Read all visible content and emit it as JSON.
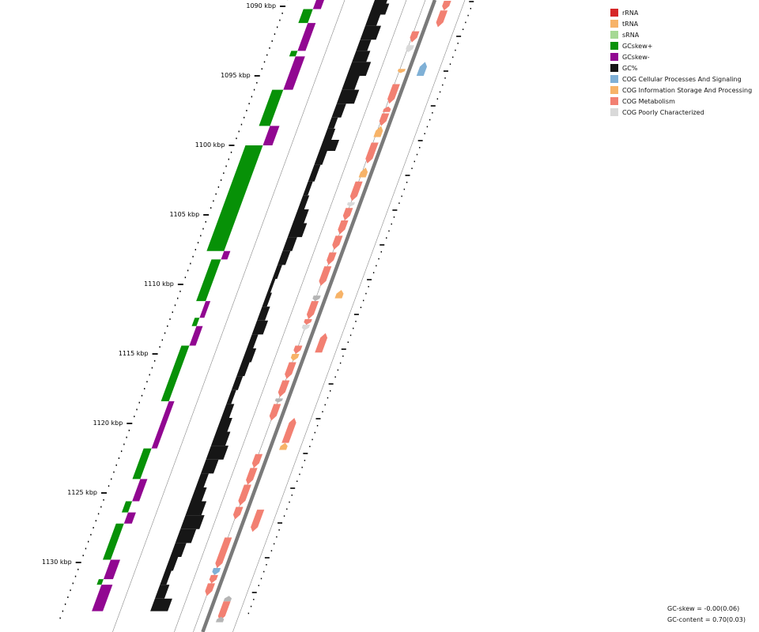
{
  "map": {
    "ticks": [
      {
        "label": "1090 kbp",
        "kbp": 1090
      },
      {
        "label": "1095 kbp",
        "kbp": 1095
      },
      {
        "label": "1100 kbp",
        "kbp": 1100
      },
      {
        "label": "1105 kbp",
        "kbp": 1105
      },
      {
        "label": "1110 kbp",
        "kbp": 1110
      },
      {
        "label": "1115 kbp",
        "kbp": 1115
      },
      {
        "label": "1120 kbp",
        "kbp": 1120
      },
      {
        "label": "1125 kbp",
        "kbp": 1125
      },
      {
        "label": "1130 kbp",
        "kbp": 1130
      }
    ],
    "colors": {
      "gc_skew_plus": "#079107",
      "gc_skew_minus": "#910791",
      "gc_content": "#161616",
      "cog_metabolism": "#f28072",
      "cog_info": "#f7b368",
      "cog_cellular": "#7fb0d6",
      "cog_poor": "#d9d9d9",
      "feature_gray": "#b5b5b5",
      "backbone": "#7a7a7a",
      "guide": "#8a8a8a"
    },
    "gc_skew_profile": [
      [
        "-",
        1089.0,
        1090.2,
        10
      ],
      [
        "+",
        1090.2,
        1091.2,
        12
      ],
      [
        "-",
        1091.2,
        1093.2,
        10
      ],
      [
        "+",
        1093.2,
        1093.6,
        8
      ],
      [
        "-",
        1093.6,
        1096.0,
        12
      ],
      [
        "+",
        1096.0,
        1098.6,
        14
      ],
      [
        "-",
        1098.6,
        1100.0,
        12
      ],
      [
        "+",
        1100.0,
        1107.6,
        22
      ],
      [
        "-",
        1107.6,
        1108.2,
        8
      ],
      [
        "+",
        1108.2,
        1111.2,
        12
      ],
      [
        "-",
        1111.2,
        1112.4,
        6
      ],
      [
        "+",
        1112.4,
        1113.0,
        6
      ],
      [
        "-",
        1113.0,
        1114.4,
        8
      ],
      [
        "+",
        1114.4,
        1118.4,
        10
      ],
      [
        "-",
        1118.4,
        1121.8,
        7
      ],
      [
        "+",
        1121.8,
        1124.0,
        10
      ],
      [
        "-",
        1124.0,
        1125.6,
        9
      ],
      [
        "+",
        1125.6,
        1126.4,
        8
      ],
      [
        "-",
        1126.4,
        1127.2,
        10
      ],
      [
        "+",
        1127.2,
        1129.8,
        10
      ],
      [
        "-",
        1129.8,
        1131.2,
        12
      ],
      [
        "+",
        1131.2,
        1131.6,
        6
      ],
      [
        "-",
        1131.6,
        1133.5,
        14
      ]
    ],
    "gc_content_profile": [
      [
        1089.0,
        16
      ],
      [
        1089.8,
        20
      ],
      [
        1090.6,
        14
      ],
      [
        1091.4,
        20
      ],
      [
        1092.4,
        14
      ],
      [
        1093.2,
        18
      ],
      [
        1094.0,
        24
      ],
      [
        1095.0,
        16
      ],
      [
        1096.0,
        22
      ],
      [
        1097.0,
        12
      ],
      [
        1098.0,
        8
      ],
      [
        1098.8,
        10
      ],
      [
        1099.6,
        20
      ],
      [
        1100.4,
        10
      ],
      [
        1101.4,
        8
      ],
      [
        1102.6,
        6
      ],
      [
        1103.6,
        8
      ],
      [
        1104.6,
        14
      ],
      [
        1105.6,
        18
      ],
      [
        1106.6,
        12
      ],
      [
        1107.6,
        10
      ],
      [
        1108.6,
        6
      ],
      [
        1109.6,
        4
      ],
      [
        1110.6,
        6
      ],
      [
        1111.6,
        10
      ],
      [
        1112.6,
        14
      ],
      [
        1113.6,
        8
      ],
      [
        1114.6,
        12
      ],
      [
        1115.6,
        10
      ],
      [
        1116.6,
        8
      ],
      [
        1117.6,
        6
      ],
      [
        1118.6,
        10
      ],
      [
        1119.6,
        14
      ],
      [
        1120.6,
        18
      ],
      [
        1121.6,
        22
      ],
      [
        1122.6,
        16
      ],
      [
        1123.6,
        10
      ],
      [
        1124.6,
        14
      ],
      [
        1125.6,
        20
      ],
      [
        1126.6,
        24
      ],
      [
        1127.6,
        20
      ],
      [
        1128.6,
        14
      ],
      [
        1129.6,
        10
      ],
      [
        1130.6,
        8
      ],
      [
        1131.6,
        12
      ],
      [
        1132.6,
        22
      ],
      [
        1133.5,
        24
      ]
    ],
    "features": [
      [
        1089.6,
        1090.3,
        "out",
        "cog_metabolism",
        1
      ],
      [
        1090.3,
        1091.5,
        "out",
        "cog_metabolism",
        1
      ],
      [
        1091.8,
        1092.6,
        "in",
        "cog_metabolism",
        1
      ],
      [
        1092.8,
        1093.3,
        "in",
        "cog_poor",
        1
      ],
      [
        1094.0,
        1095.0,
        "out",
        "cog_cellular",
        -1
      ],
      [
        1094.5,
        1094.8,
        "in",
        "cog_info",
        1
      ],
      [
        1095.6,
        1097.0,
        "in",
        "cog_metabolism",
        1
      ],
      [
        1097.2,
        1097.6,
        "in",
        "cog_metabolism",
        -1
      ],
      [
        1097.7,
        1098.6,
        "in",
        "cog_metabolism",
        1
      ],
      [
        1098.6,
        1099.4,
        "in",
        "cog_info",
        -1
      ],
      [
        1099.8,
        1101.3,
        "in",
        "cog_metabolism",
        1
      ],
      [
        1101.6,
        1102.3,
        "in",
        "cog_info",
        -1
      ],
      [
        1102.6,
        1104.0,
        "in2",
        "cog_metabolism",
        1
      ],
      [
        1104.1,
        1104.4,
        "in2",
        "cog_poor",
        1
      ],
      [
        1104.5,
        1105.4,
        "in2",
        "cog_metabolism",
        1
      ],
      [
        1105.4,
        1106.4,
        "in2",
        "cog_metabolism",
        1
      ],
      [
        1106.5,
        1107.5,
        "in2",
        "cog_metabolism",
        1
      ],
      [
        1107.7,
        1108.6,
        "in2",
        "cog_metabolism",
        1
      ],
      [
        1108.7,
        1110.1,
        "in2",
        "cog_metabolism",
        1
      ],
      [
        1110.4,
        1111.0,
        "out",
        "cog_info",
        -1
      ],
      [
        1110.8,
        1111.2,
        "in2",
        "cog_feature_gray",
        1
      ],
      [
        1111.2,
        1112.5,
        "in2",
        "cog_metabolism",
        1
      ],
      [
        1112.5,
        1112.9,
        "in2",
        "cog_metabolism",
        1
      ],
      [
        1112.9,
        1113.3,
        "in2",
        "cog_poor",
        1
      ],
      [
        1113.5,
        1114.9,
        "out",
        "cog_metabolism",
        -1
      ],
      [
        1114.4,
        1115.0,
        "in2",
        "cog_metabolism",
        1
      ],
      [
        1115.0,
        1115.5,
        "in2",
        "cog_info",
        1
      ],
      [
        1115.6,
        1116.8,
        "in2",
        "cog_metabolism",
        1
      ],
      [
        1116.9,
        1118.1,
        "in2",
        "cog_metabolism",
        1
      ],
      [
        1118.2,
        1118.5,
        "in2",
        "cog_feature_gray",
        1
      ],
      [
        1118.6,
        1119.8,
        "in2",
        "cog_metabolism",
        1
      ],
      [
        1119.6,
        1121.4,
        "out",
        "cog_metabolism",
        -1
      ],
      [
        1121.4,
        1121.9,
        "out",
        "cog_info",
        -1
      ],
      [
        1122.2,
        1123.2,
        "in2",
        "cog_metabolism",
        1
      ],
      [
        1123.2,
        1124.4,
        "in2",
        "cog_metabolism",
        1
      ],
      [
        1124.4,
        1125.9,
        "in2",
        "cog_metabolism",
        1
      ],
      [
        1126.0,
        1126.9,
        "in2",
        "cog_metabolism",
        1
      ],
      [
        1126.2,
        1127.8,
        "out",
        "cog_metabolism",
        1
      ],
      [
        1128.2,
        1130.4,
        "in2",
        "cog_metabolism",
        1
      ],
      [
        1130.4,
        1130.9,
        "in2",
        "cog_cellular",
        1
      ],
      [
        1130.9,
        1131.5,
        "in2",
        "cog_metabolism",
        1
      ],
      [
        1131.5,
        1132.4,
        "in2",
        "cog_metabolism",
        1
      ],
      [
        1132.4,
        1132.8,
        "out",
        "cog_feature_gray",
        -1
      ],
      [
        1132.8,
        1134.2,
        "out",
        "cog_metabolism",
        1
      ],
      [
        1133.9,
        1134.3,
        "out",
        "cog_feature_gray",
        -1
      ]
    ]
  },
  "legend": [
    {
      "label": "rRNA",
      "color": "#d62728"
    },
    {
      "label": "tRNA",
      "color": "#f7b368"
    },
    {
      "label": "sRNA",
      "color": "#a6d895"
    },
    {
      "label": "GCskew+",
      "color": "#079107"
    },
    {
      "label": "GCskew-",
      "color": "#910791"
    },
    {
      "label": "GC%",
      "color": "#161616"
    },
    {
      "label": "COG Cellular Processes And Signaling",
      "color": "#7fb0d6"
    },
    {
      "label": "COG Information Storage And Processing",
      "color": "#f7b368"
    },
    {
      "label": "COG Metabolism",
      "color": "#f28072"
    },
    {
      "label": "COG Poorly Characterized",
      "color": "#d9d9d9"
    }
  ],
  "stats": {
    "gc_skew": "GC-skew = -0.00(0.06)",
    "gc_content": "GC-content = 0.70(0.03)"
  }
}
